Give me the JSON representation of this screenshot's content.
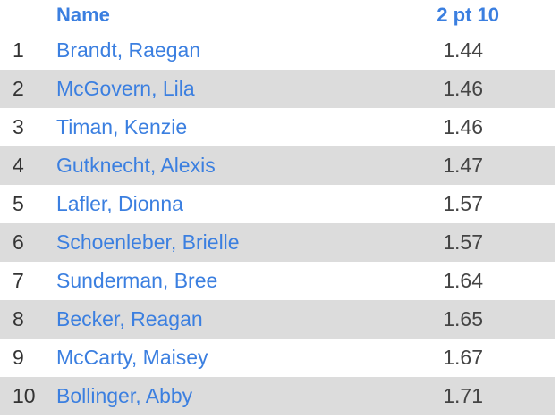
{
  "table": {
    "header": [
      "",
      "Name",
      "2 pt 10"
    ],
    "rows": [
      [
        "1",
        "Brandt, Raegan",
        "1.44"
      ],
      [
        "2",
        "McGovern, Lila",
        "1.46"
      ],
      [
        "3",
        "Timan, Kenzie",
        "1.46"
      ],
      [
        "4",
        "Gutknecht, Alexis",
        "1.47"
      ],
      [
        "5",
        "Lafler, Dionna",
        "1.57"
      ],
      [
        "6",
        "Schoenleber, Brielle",
        "1.57"
      ],
      [
        "7",
        "Sunderman, Bree",
        "1.64"
      ],
      [
        "8",
        "Becker, Reagan",
        "1.65"
      ],
      [
        "9",
        "McCarty, Maisey",
        "1.67"
      ],
      [
        "10",
        "Bollinger, Abby",
        "1.71"
      ]
    ]
  }
}
